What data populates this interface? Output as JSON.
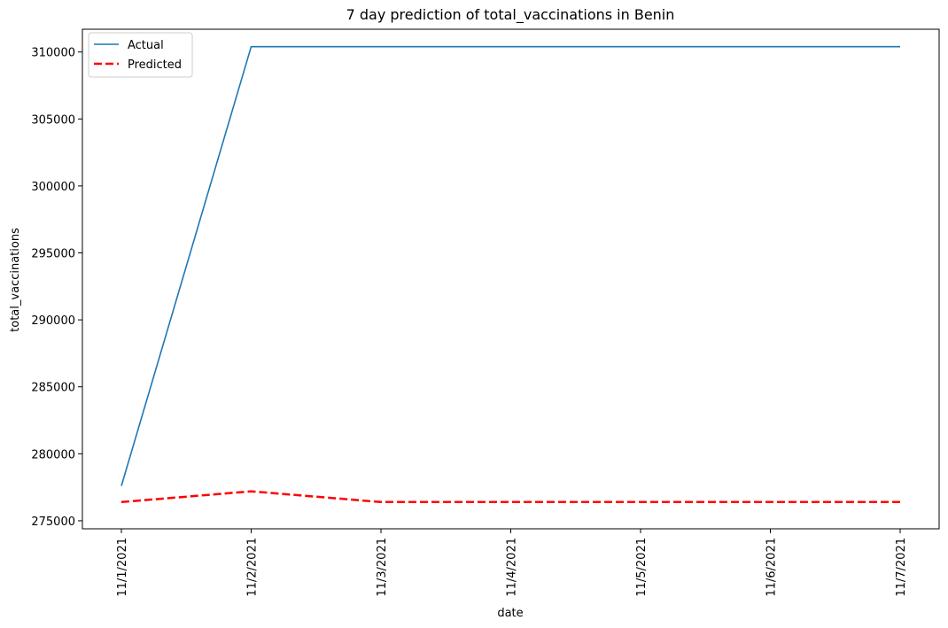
{
  "chart_data": {
    "type": "line",
    "title": "7 day prediction of total_vaccinations in Benin",
    "xlabel": "date",
    "ylabel": "total_vaccinations",
    "x": [
      "11/1/2021",
      "11/2/2021",
      "11/3/2021",
      "11/4/2021",
      "11/5/2021",
      "11/6/2021",
      "11/7/2021"
    ],
    "y_ticks": [
      275000,
      280000,
      285000,
      290000,
      295000,
      300000,
      305000,
      310000
    ],
    "ylim": [
      274400,
      311700
    ],
    "grid": false,
    "legend_position": "top-left",
    "series": [
      {
        "name": "Actual",
        "color": "#1f77b4",
        "style": "solid",
        "values": [
          277600,
          310400,
          310400,
          310400,
          310400,
          310400,
          310400
        ]
      },
      {
        "name": "Predicted",
        "color": "#ff0000",
        "style": "dashed",
        "values": [
          276400,
          277200,
          276400,
          276400,
          276400,
          276400,
          276400
        ]
      }
    ]
  }
}
